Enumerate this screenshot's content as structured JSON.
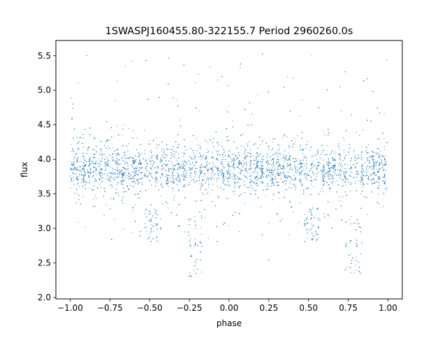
{
  "chart_data": {
    "type": "scatter",
    "title": "1SWASPJ160455.80-322155.7 Period 2960260.0s",
    "xlabel": "phase",
    "ylabel": "flux",
    "xlim": [
      -1.09,
      1.09
    ],
    "ylim": [
      1.98,
      5.72
    ],
    "xticks": [
      -1.0,
      -0.75,
      -0.5,
      -0.25,
      0.0,
      0.25,
      0.5,
      0.75,
      1.0
    ],
    "xtick_labels": [
      "−1.00",
      "−0.75",
      "−0.50",
      "−0.25",
      "0.00",
      "0.25",
      "0.50",
      "0.75",
      "1.00"
    ],
    "yticks": [
      2.0,
      2.5,
      3.0,
      3.5,
      4.0,
      4.5,
      5.0,
      5.5
    ],
    "ytick_labels": [
      "2.0",
      "2.5",
      "3.0",
      "3.5",
      "4.0",
      "4.5",
      "5.0",
      "5.5"
    ],
    "grid": false,
    "marker_color": "#1f77b4",
    "series": [
      {
        "x_range": [
          -1.0,
          1.0
        ],
        "approx_point_count": 24000,
        "typical_flux_range": [
          3.55,
          4.15
        ],
        "median_flux": 3.85,
        "max_flux": 5.6,
        "min_flux": 2.17,
        "low_flux_clusters": [
          {
            "phase": -0.22,
            "flux": [
              2.3,
              3.2
            ]
          },
          {
            "phase": -0.48,
            "flux": [
              2.8,
              3.3
            ]
          },
          {
            "phase": 0.52,
            "flux": [
              2.8,
              3.3
            ]
          },
          {
            "phase": 0.78,
            "flux": [
              2.3,
              3.2
            ]
          }
        ]
      }
    ]
  }
}
